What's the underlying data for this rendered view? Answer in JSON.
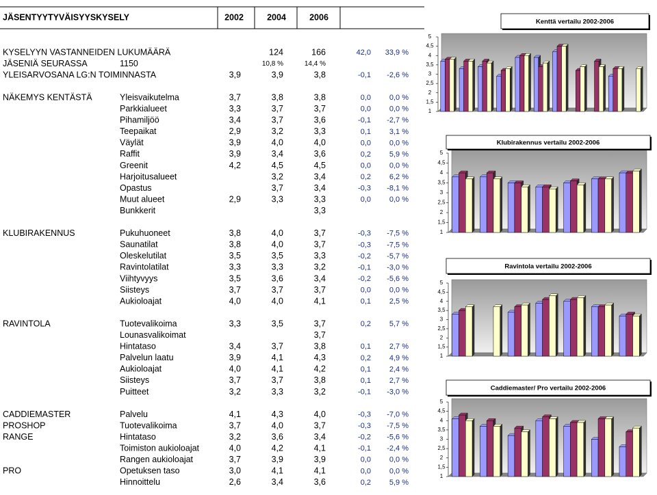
{
  "header": {
    "title": "JÄSENTYYTYVÄISYYSKYSELY",
    "years": [
      "2002",
      "2004",
      "2006"
    ]
  },
  "table": {
    "rows": [
      [
        "KYSELYYN VASTANNEIDEN LUKUMÄÄRÄ",
        null,
        null,
        "124",
        "166",
        "42,0",
        "33,9 %"
      ],
      [
        "JÄSENIÄ SEURASSA",
        "1150",
        null,
        "10,8 %",
        "14,4 %",
        null,
        null
      ],
      [
        "YLEISARVOSANA LG:N TOIMINNASTA",
        null,
        "3,9",
        "3,9",
        "3,8",
        "-0,1",
        "-2,6 %"
      ],
      null,
      [
        "NÄKEMYS KENTÄSTÄ",
        "Yleisvaikutelma",
        "3,7",
        "3,8",
        "3,8",
        "0,0",
        "0,0 %"
      ],
      [
        null,
        "Parkkialueet",
        "3,3",
        "3,7",
        "3,7",
        "0,0",
        "0,0 %"
      ],
      [
        null,
        "Pihamiljöö",
        "3,4",
        "3,7",
        "3,6",
        "-0,1",
        "-2,7 %"
      ],
      [
        null,
        "Teepaikat",
        "2,9",
        "3,2",
        "3,3",
        "0,1",
        "3,1 %"
      ],
      [
        null,
        "Väylät",
        "3,9",
        "4,0",
        "4,0",
        "0,0",
        "0,0 %"
      ],
      [
        null,
        "Raffit",
        "3,9",
        "3,4",
        "3,6",
        "0,2",
        "5,9 %"
      ],
      [
        null,
        "Greenit",
        "4,2",
        "4,5",
        "4,5",
        "0,0",
        "0,0 %"
      ],
      [
        null,
        "Harjoitusalueet",
        null,
        "3,2",
        "3,4",
        "0,2",
        "6,2 %"
      ],
      [
        null,
        "Opastus",
        null,
        "3,7",
        "3,4",
        "-0,3",
        "-8,1 %"
      ],
      [
        null,
        "Muut alueet",
        "2,9",
        "3,3",
        "3,3",
        "0,0",
        "0,0 %"
      ],
      [
        null,
        "Bunkkerit",
        null,
        null,
        "3,3",
        null,
        null
      ],
      null,
      [
        "KLUBIRAKENNUS",
        "Pukuhuoneet",
        "3,8",
        "4,0",
        "3,7",
        "-0,3",
        "-7,5 %"
      ],
      [
        null,
        "Saunatilat",
        "3,8",
        "4,0",
        "3,7",
        "-0,3",
        "-7,5 %"
      ],
      [
        null,
        "Oleskelutilat",
        "3,5",
        "3,5",
        "3,3",
        "-0,2",
        "-5,7 %"
      ],
      [
        null,
        "Ravintolatilat",
        "3,3",
        "3,3",
        "3,2",
        "-0,1",
        "-3,0 %"
      ],
      [
        null,
        "Viihtyvyys",
        "3,5",
        "3,6",
        "3,4",
        "-0,2",
        "-5,6 %"
      ],
      [
        null,
        "Siisteys",
        "3,7",
        "3,7",
        "3,7",
        "0,0",
        "0,0 %"
      ],
      [
        null,
        "Aukioloajat",
        "4,0",
        "4,0",
        "4,1",
        "0,1",
        "2,5 %"
      ],
      null,
      [
        "RAVINTOLA",
        "Tuotevalikoima",
        "3,3",
        "3,5",
        "3,7",
        "0,2",
        "5,7 %"
      ],
      [
        null,
        "Lounasvalikoimat",
        null,
        null,
        "3,7",
        null,
        null
      ],
      [
        null,
        "Hintataso",
        "3,4",
        "3,7",
        "3,8",
        "0,1",
        "2,7 %"
      ],
      [
        null,
        "Palvelun laatu",
        "3,9",
        "4,1",
        "4,3",
        "0,2",
        "4,9 %"
      ],
      [
        null,
        "Aukioloajat",
        "4,0",
        "4,1",
        "4,2",
        "0,1",
        "2,4 %"
      ],
      [
        null,
        "Siisteys",
        "3,7",
        "3,7",
        "3,8",
        "0,1",
        "2,7 %"
      ],
      [
        null,
        "Puitteet",
        "3,2",
        "3,3",
        "3,2",
        "-0,1",
        "-3,0 %"
      ],
      null,
      [
        "CADDIEMASTER",
        "Palvelu",
        "4,1",
        "4,3",
        "4,0",
        "-0,3",
        "-7,0 %"
      ],
      [
        "PROSHOP",
        "Tuotevalikoima",
        "3,7",
        "4,0",
        "3,7",
        "-0,3",
        "-7,5 %"
      ],
      [
        "RANGE",
        "Hintataso",
        "3,2",
        "3,6",
        "3,4",
        "-0,2",
        "-5,6 %"
      ],
      [
        null,
        "Toimiston aukioloajat",
        "4,0",
        "4,2",
        "4,1",
        "-0,1",
        "-2,4 %"
      ],
      [
        null,
        "Rangen aukioloajat",
        "3,7",
        "3,9",
        "3,9",
        "0,0",
        "0,0 %"
      ],
      [
        "PRO",
        "Opetuksen taso",
        "3,0",
        "4,1",
        "4,1",
        "0,0",
        "0,0 %"
      ],
      [
        null,
        "Hinnoittelu",
        "2,6",
        "3,4",
        "3,6",
        "0,2",
        "5,9 %"
      ]
    ]
  },
  "chart_data": [
    {
      "type": "bar",
      "title": "Kenttä vertailu 2002-2006",
      "categories": [
        null,
        null,
        null,
        null,
        null,
        null,
        null,
        null,
        null,
        null,
        null
      ],
      "series": [
        {
          "color": "#9999ff",
          "values": [
            3.7,
            3.3,
            3.4,
            2.9,
            3.9,
            3.9,
            4.2,
            null,
            null,
            2.9,
            null
          ]
        },
        {
          "color": "#993366",
          "values": [
            3.8,
            3.7,
            3.7,
            3.2,
            4.0,
            3.4,
            4.5,
            3.2,
            3.7,
            3.3,
            null
          ]
        },
        {
          "color": "#ffffcc",
          "values": [
            3.8,
            3.7,
            3.6,
            3.3,
            4.0,
            3.6,
            4.5,
            3.4,
            3.4,
            3.3,
            3.3
          ]
        }
      ],
      "ylim": [
        1,
        5
      ],
      "yticks": [
        1,
        {
          "value": 1.5,
          "label": "1,5"
        },
        2,
        {
          "value": 2.5,
          "label": "2,5"
        },
        3,
        {
          "value": 3.5,
          "label": "3,5"
        },
        4,
        {
          "value": 4.5,
          "label": "4,5"
        },
        5
      ]
    },
    {
      "type": "bar",
      "title": "Klubirakennus vertailu 2002-2006",
      "categories": [
        null,
        null,
        null,
        null,
        null,
        null,
        null
      ],
      "series": [
        {
          "color": "#9999ff",
          "values": [
            3.8,
            3.8,
            3.5,
            3.3,
            3.5,
            3.7,
            4.0
          ]
        },
        {
          "color": "#993366",
          "values": [
            4.0,
            4.0,
            3.5,
            3.3,
            3.6,
            3.7,
            4.0
          ]
        },
        {
          "color": "#ffffcc",
          "values": [
            3.7,
            3.7,
            3.3,
            3.2,
            3.4,
            3.7,
            4.1
          ]
        }
      ],
      "ylim": [
        1,
        5
      ],
      "yticks": [
        1,
        {
          "value": 1.5,
          "label": "1,5"
        },
        2,
        {
          "value": 2.5,
          "label": "2,5"
        },
        3,
        {
          "value": 3.5,
          "label": "3,5"
        },
        4,
        {
          "value": 4.5,
          "label": "4,5"
        },
        5
      ]
    },
    {
      "type": "bar",
      "title": "Ravintola vertailu 2002-2006",
      "categories": [
        null,
        null,
        null,
        null,
        null,
        null,
        null
      ],
      "series": [
        {
          "color": "#9999ff",
          "values": [
            3.3,
            null,
            3.4,
            3.9,
            4.0,
            3.7,
            3.2
          ]
        },
        {
          "color": "#993366",
          "values": [
            3.5,
            null,
            3.7,
            4.1,
            4.1,
            3.7,
            3.3
          ]
        },
        {
          "color": "#ffffcc",
          "values": [
            3.7,
            3.7,
            3.8,
            4.3,
            4.2,
            3.8,
            3.2
          ]
        }
      ],
      "ylim": [
        1,
        5
      ],
      "yticks": [
        1,
        {
          "value": 1.5,
          "label": "1,5"
        },
        2,
        {
          "value": 2.5,
          "label": "2,5"
        },
        3,
        {
          "value": 3.5,
          "label": "3,5"
        },
        4,
        {
          "value": 4.5,
          "label": "4,5"
        },
        5
      ]
    },
    {
      "type": "bar",
      "title": "Caddiemaster/ Pro vertailu 2002-2006",
      "categories": [
        null,
        null,
        null,
        null,
        null,
        null,
        null
      ],
      "series": [
        {
          "color": "#9999ff",
          "values": [
            4.1,
            3.7,
            3.2,
            4.0,
            3.7,
            3.0,
            2.6
          ]
        },
        {
          "color": "#993366",
          "values": [
            4.3,
            4.0,
            3.6,
            4.2,
            3.9,
            4.1,
            3.4
          ]
        },
        {
          "color": "#ffffcc",
          "values": [
            4.0,
            3.7,
            3.4,
            4.1,
            3.9,
            4.1,
            3.6
          ]
        }
      ],
      "ylim": [
        1,
        5
      ],
      "yticks": [
        1,
        {
          "value": 1.5,
          "label": "1,5"
        },
        2,
        {
          "value": 2.5,
          "label": "2,5"
        },
        3,
        {
          "value": 3.5,
          "label": "3,5"
        },
        4,
        {
          "value": 4.5,
          "label": "4,5"
        },
        5
      ]
    }
  ]
}
